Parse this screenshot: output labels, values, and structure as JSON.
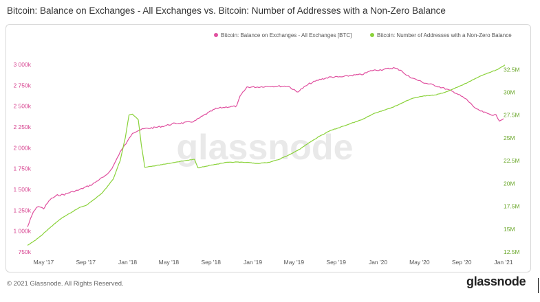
{
  "title": "Bitcoin: Balance on Exchanges - All Exchanges vs. Bitcoin: Number of Addresses with a Non-Zero Balance",
  "footer": {
    "copyright": "© 2021 Glassnode. All Rights Reserved.",
    "brand": "glassnode",
    "watermark": "glassnode"
  },
  "colors": {
    "balance": "#e0509f",
    "addresses": "#8ad23a",
    "left_axis": "#d6408e",
    "right_axis": "#6aa72a",
    "bottom_axis": "#555555"
  },
  "chart_data": {
    "type": "line",
    "title": "Bitcoin: Balance on Exchanges - All Exchanges vs. Bitcoin: Number of Addresses with a Non-Zero Balance",
    "legend_position": "top-right",
    "grid": false,
    "x_range": [
      "2017-03-15",
      "2021-01-05"
    ],
    "x_ticks": [
      {
        "label": "May '17",
        "date": "2017-05-01"
      },
      {
        "label": "Sep '17",
        "date": "2017-09-01"
      },
      {
        "label": "Jan '18",
        "date": "2018-01-01"
      },
      {
        "label": "May '18",
        "date": "2018-05-01"
      },
      {
        "label": "Sep '18",
        "date": "2018-09-01"
      },
      {
        "label": "Jan '19",
        "date": "2019-01-01"
      },
      {
        "label": "May '19",
        "date": "2019-05-01"
      },
      {
        "label": "Sep '19",
        "date": "2019-09-01"
      },
      {
        "label": "Jan '20",
        "date": "2020-01-01"
      },
      {
        "label": "May '20",
        "date": "2020-05-01"
      },
      {
        "label": "Sep '20",
        "date": "2020-09-01"
      },
      {
        "label": "Jan '21",
        "date": "2021-01-01"
      }
    ],
    "y_left": {
      "ylim": [
        750000,
        3050000
      ],
      "ticks": [
        {
          "label": "750k",
          "value": 750000
        },
        {
          "label": "1 000k",
          "value": 1000000
        },
        {
          "label": "1 250k",
          "value": 1250000
        },
        {
          "label": "1 500k",
          "value": 1500000
        },
        {
          "label": "1 750k",
          "value": 1750000
        },
        {
          "label": "2 000k",
          "value": 2000000
        },
        {
          "label": "2 250k",
          "value": 2250000
        },
        {
          "label": "2 500k",
          "value": 2500000
        },
        {
          "label": "2 750k",
          "value": 2750000
        },
        {
          "label": "3 000k",
          "value": 3000000
        }
      ]
    },
    "y_right": {
      "ylim": [
        12500000,
        33500000
      ],
      "ticks": [
        {
          "label": "12.5M",
          "value": 12500000
        },
        {
          "label": "15M",
          "value": 15000000
        },
        {
          "label": "17.5M",
          "value": 17500000
        },
        {
          "label": "20M",
          "value": 20000000
        },
        {
          "label": "22.5M",
          "value": 22500000
        },
        {
          "label": "25M",
          "value": 25000000
        },
        {
          "label": "27.5M",
          "value": 27500000
        },
        {
          "label": "30M",
          "value": 30000000
        },
        {
          "label": "32.5M",
          "value": 32500000
        }
      ]
    },
    "series": [
      {
        "name": "Bitcoin: Balance on Exchanges - All Exchanges [BTC]",
        "axis": "left",
        "points": [
          [
            "2017-03-15",
            1050000
          ],
          [
            "2017-04-01",
            1230000
          ],
          [
            "2017-04-15",
            1300000
          ],
          [
            "2017-05-01",
            1270000
          ],
          [
            "2017-05-20",
            1380000
          ],
          [
            "2017-06-10",
            1430000
          ],
          [
            "2017-07-01",
            1440000
          ],
          [
            "2017-07-20",
            1470000
          ],
          [
            "2017-08-10",
            1490000
          ],
          [
            "2017-09-01",
            1530000
          ],
          [
            "2017-09-20",
            1560000
          ],
          [
            "2017-10-10",
            1620000
          ],
          [
            "2017-11-01",
            1670000
          ],
          [
            "2017-11-20",
            1780000
          ],
          [
            "2017-12-10",
            1950000
          ],
          [
            "2018-01-01",
            2080000
          ],
          [
            "2018-01-15",
            2180000
          ],
          [
            "2018-02-01",
            2210000
          ],
          [
            "2018-02-20",
            2230000
          ],
          [
            "2018-03-15",
            2240000
          ],
          [
            "2018-04-15",
            2260000
          ],
          [
            "2018-05-15",
            2290000
          ],
          [
            "2018-06-15",
            2300000
          ],
          [
            "2018-07-15",
            2320000
          ],
          [
            "2018-08-15",
            2400000
          ],
          [
            "2018-09-15",
            2470000
          ],
          [
            "2018-10-15",
            2490000
          ],
          [
            "2018-11-15",
            2500000
          ],
          [
            "2018-11-25",
            2620000
          ],
          [
            "2018-12-15",
            2730000
          ],
          [
            "2019-01-15",
            2730000
          ],
          [
            "2019-02-15",
            2740000
          ],
          [
            "2019-03-15",
            2740000
          ],
          [
            "2019-04-15",
            2740000
          ],
          [
            "2019-05-10",
            2670000
          ],
          [
            "2019-06-15",
            2770000
          ],
          [
            "2019-07-15",
            2820000
          ],
          [
            "2019-08-15",
            2850000
          ],
          [
            "2019-09-15",
            2850000
          ],
          [
            "2019-10-15",
            2870000
          ],
          [
            "2019-11-15",
            2880000
          ],
          [
            "2019-12-15",
            2930000
          ],
          [
            "2020-01-15",
            2940000
          ],
          [
            "2020-02-15",
            2960000
          ],
          [
            "2020-03-10",
            2930000
          ],
          [
            "2020-03-20",
            2880000
          ],
          [
            "2020-04-15",
            2830000
          ],
          [
            "2020-05-15",
            2780000
          ],
          [
            "2020-06-15",
            2750000
          ],
          [
            "2020-07-15",
            2710000
          ],
          [
            "2020-08-15",
            2660000
          ],
          [
            "2020-09-15",
            2580000
          ],
          [
            "2020-10-15",
            2460000
          ],
          [
            "2020-11-15",
            2410000
          ],
          [
            "2020-12-10",
            2390000
          ],
          [
            "2020-12-20",
            2330000
          ],
          [
            "2021-01-01",
            2350000
          ]
        ]
      },
      {
        "name": "Bitcoin: Number of Addresses with a Non-Zero Balance",
        "axis": "right",
        "points": [
          [
            "2017-03-15",
            13200000
          ],
          [
            "2017-04-15",
            14000000
          ],
          [
            "2017-05-15",
            15000000
          ],
          [
            "2017-06-15",
            16000000
          ],
          [
            "2017-07-15",
            16700000
          ],
          [
            "2017-08-15",
            17400000
          ],
          [
            "2017-09-01",
            17600000
          ],
          [
            "2017-09-20",
            18100000
          ],
          [
            "2017-10-20",
            19000000
          ],
          [
            "2017-11-20",
            20500000
          ],
          [
            "2017-12-10",
            22500000
          ],
          [
            "2017-12-25",
            25000000
          ],
          [
            "2018-01-05",
            27500000
          ],
          [
            "2018-01-15",
            27600000
          ],
          [
            "2018-02-01",
            27000000
          ],
          [
            "2018-02-10",
            24200000
          ],
          [
            "2018-02-20",
            21800000
          ],
          [
            "2018-03-15",
            21900000
          ],
          [
            "2018-04-15",
            22100000
          ],
          [
            "2018-05-15",
            22300000
          ],
          [
            "2018-06-15",
            22500000
          ],
          [
            "2018-07-15",
            22650000
          ],
          [
            "2018-07-25",
            21700000
          ],
          [
            "2018-08-15",
            21900000
          ],
          [
            "2018-09-15",
            22100000
          ],
          [
            "2018-10-15",
            22300000
          ],
          [
            "2018-11-15",
            22350000
          ],
          [
            "2018-12-15",
            22300000
          ],
          [
            "2019-01-15",
            22200000
          ],
          [
            "2019-02-15",
            22300000
          ],
          [
            "2019-03-15",
            22600000
          ],
          [
            "2019-04-15",
            23100000
          ],
          [
            "2019-05-15",
            23700000
          ],
          [
            "2019-06-15",
            24500000
          ],
          [
            "2019-07-15",
            25200000
          ],
          [
            "2019-08-15",
            25800000
          ],
          [
            "2019-09-15",
            26200000
          ],
          [
            "2019-10-15",
            26600000
          ],
          [
            "2019-11-15",
            27000000
          ],
          [
            "2019-12-15",
            27600000
          ],
          [
            "2020-01-15",
            28000000
          ],
          [
            "2020-02-15",
            28400000
          ],
          [
            "2020-03-15",
            28900000
          ],
          [
            "2020-04-15",
            29400000
          ],
          [
            "2020-05-15",
            29600000
          ],
          [
            "2020-06-15",
            29700000
          ],
          [
            "2020-07-15",
            30000000
          ],
          [
            "2020-08-15",
            30500000
          ],
          [
            "2020-09-15",
            31000000
          ],
          [
            "2020-10-15",
            31600000
          ],
          [
            "2020-11-15",
            32100000
          ],
          [
            "2020-12-15",
            32500000
          ],
          [
            "2021-01-05",
            33000000
          ]
        ]
      }
    ]
  }
}
